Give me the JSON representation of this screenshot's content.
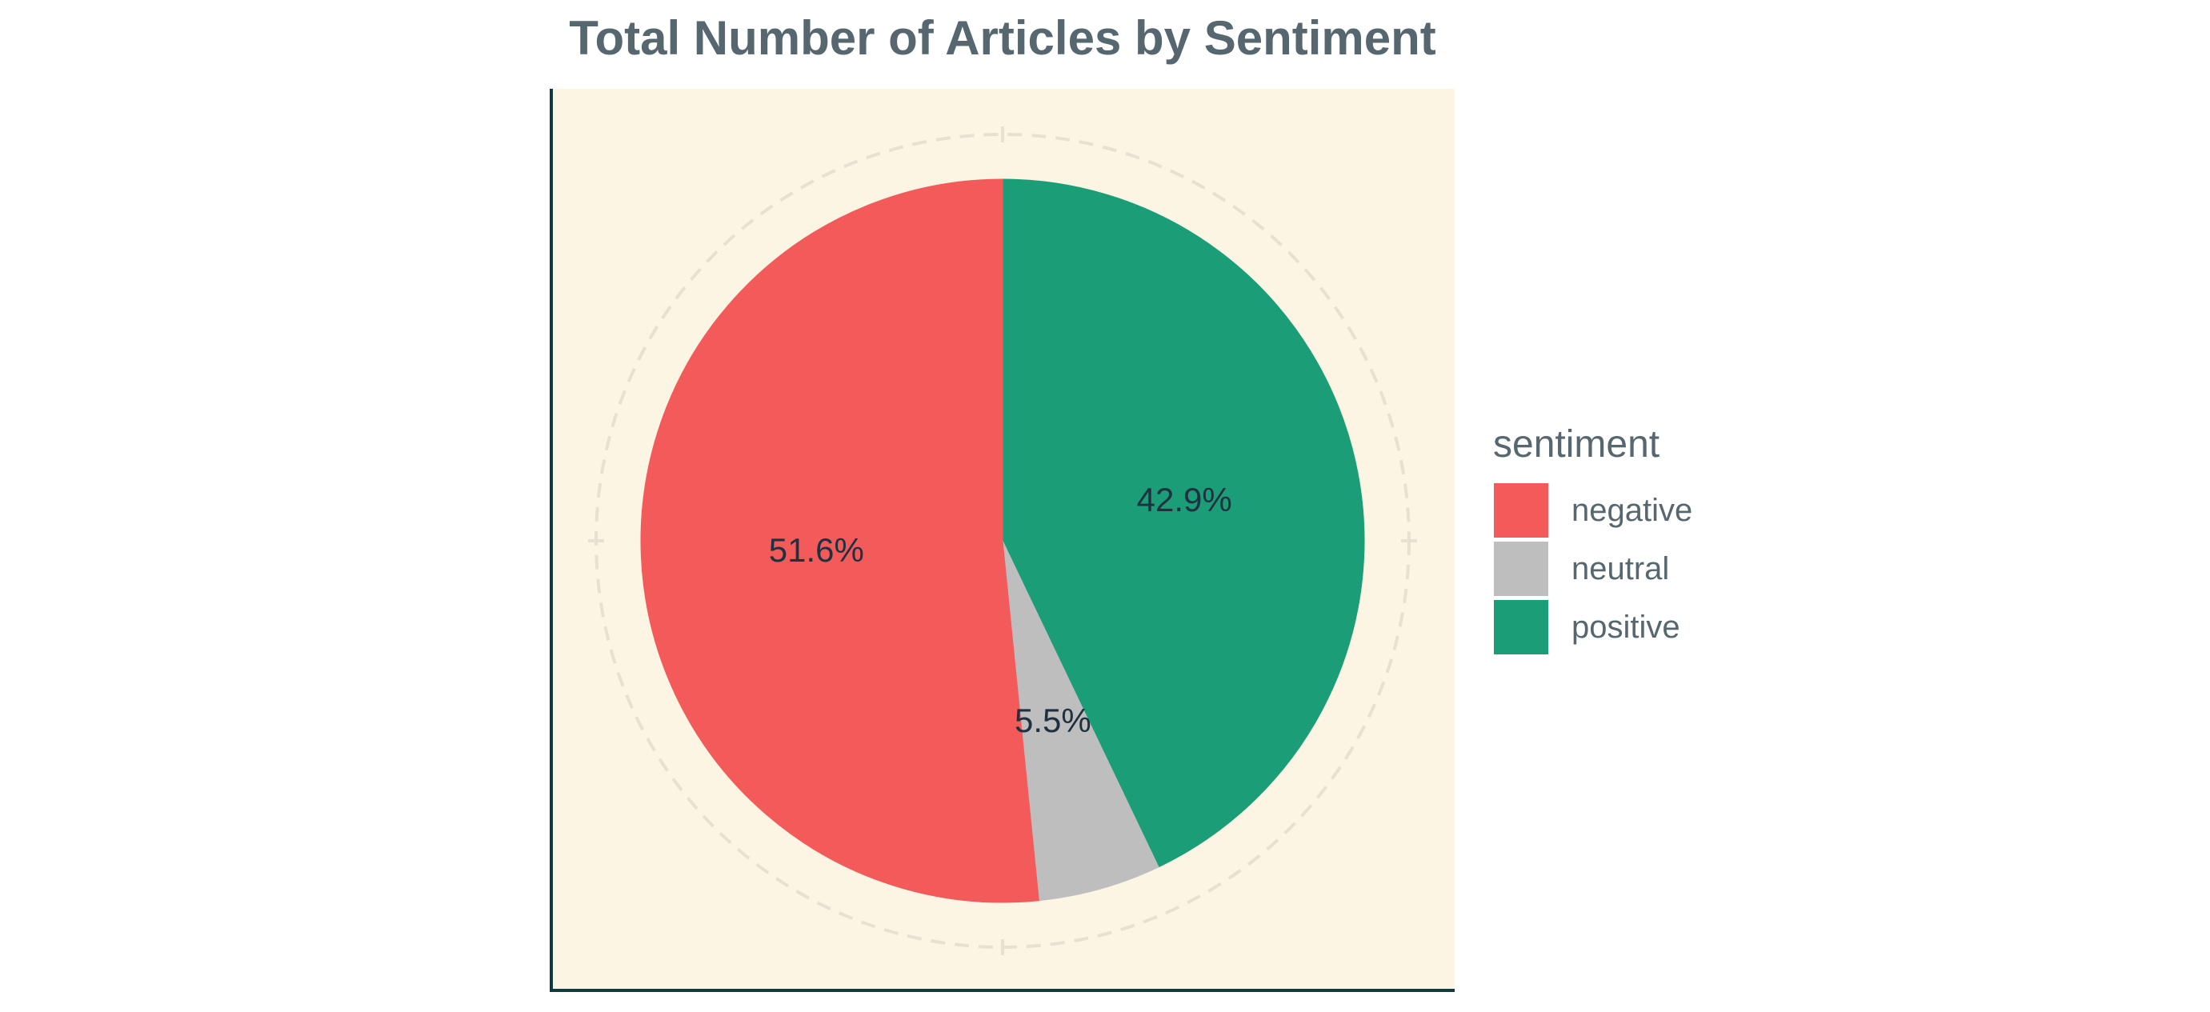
{
  "chart_data": {
    "type": "pie",
    "title": "Total Number of Articles by Sentiment",
    "legend_title": "sentiment",
    "legend_position": "right",
    "start_angle_deg": 0,
    "direction": "clockwise",
    "slices": [
      {
        "name": "positive",
        "value": 42.9,
        "label": "42.9%",
        "color": "#1b9e77"
      },
      {
        "name": "neutral",
        "value": 5.5,
        "label": "5.5%",
        "color": "#bebebe"
      },
      {
        "name": "negative",
        "value": 51.6,
        "label": "51.6%",
        "color": "#f35b5b"
      }
    ],
    "legend": [
      {
        "name": "negative",
        "color": "#f35b5b"
      },
      {
        "name": "neutral",
        "color": "#bebebe"
      },
      {
        "name": "positive",
        "color": "#1b9e77"
      }
    ],
    "panel_background": "#fcf5e3",
    "axis_color": "#0f3a3f",
    "grid": true
  }
}
